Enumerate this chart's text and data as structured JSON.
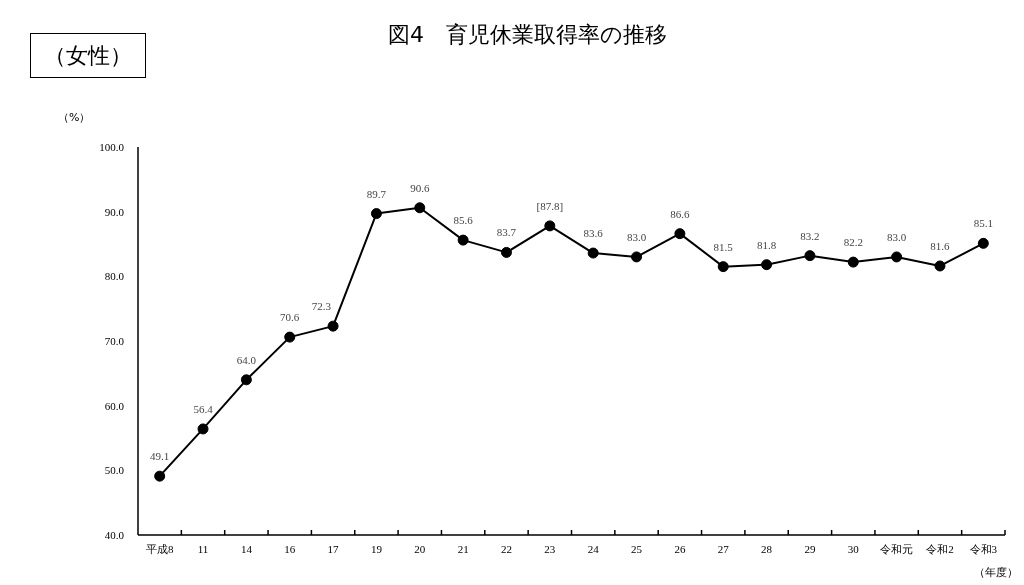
{
  "chart_data": {
    "type": "line",
    "title": "図4　育児休業取得率の推移",
    "subtitle": "（女性）",
    "xlabel": "（年度）",
    "ylabel": "（%）",
    "categories": [
      "平成8",
      "11",
      "14",
      "16",
      "17",
      "19",
      "20",
      "21",
      "22",
      "23",
      "24",
      "25",
      "26",
      "27",
      "28",
      "29",
      "30",
      "令和元",
      "令和2",
      "令和3"
    ],
    "values": [
      49.1,
      56.4,
      64.0,
      70.6,
      72.3,
      89.7,
      90.6,
      85.6,
      83.7,
      87.8,
      83.6,
      83.0,
      86.6,
      81.5,
      81.8,
      83.2,
      82.2,
      83.0,
      81.6,
      85.1
    ],
    "value_labels": [
      "49.1",
      "56.4",
      "64.0",
      "70.6",
      "72.3",
      "89.7",
      "90.6",
      "85.6",
      "83.7",
      "[87.8]",
      "83.6",
      "83.0",
      "86.6",
      "81.5",
      "81.8",
      "83.2",
      "82.2",
      "83.0",
      "81.6",
      "85.1"
    ],
    "color": "#000000",
    "ylim": [
      40,
      100
    ],
    "yticks": [
      {
        "value": 40,
        "label": "40.0"
      },
      {
        "value": 50,
        "label": "50.0"
      },
      {
        "value": 60,
        "label": "60.0"
      },
      {
        "value": 70,
        "label": "70.0"
      },
      {
        "value": 80,
        "label": "80.0"
      },
      {
        "value": 90,
        "label": "90.0"
      },
      {
        "value": 100,
        "label": "100.0"
      }
    ],
    "marker": "circle",
    "line_style": "solid"
  }
}
